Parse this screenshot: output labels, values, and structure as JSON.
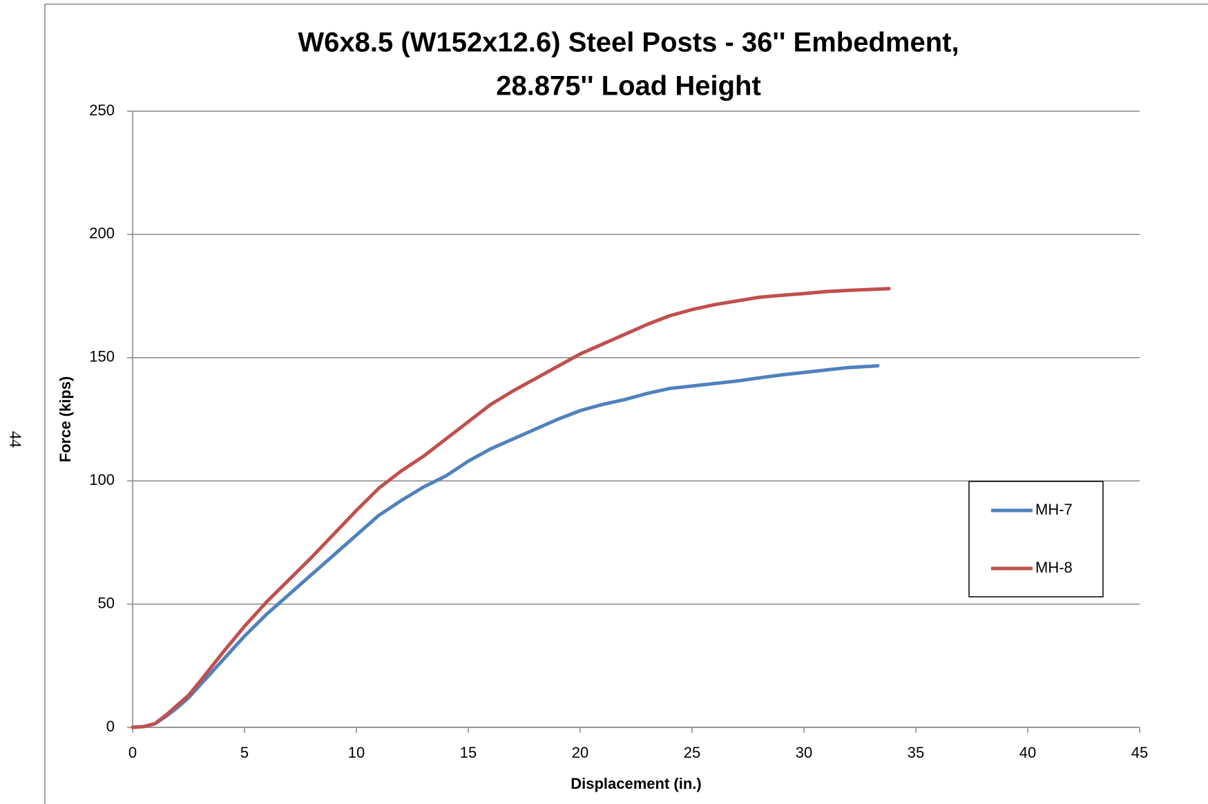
{
  "page_number": "44",
  "chart_data": {
    "type": "line",
    "title": [
      "W6x8.5 (W152x12.6) Steel Posts - 36'' Embedment,",
      "28.875'' Load Height"
    ],
    "x_label": "Displacement (in.)",
    "y_label": "Force (kips)",
    "xlim": [
      0,
      45
    ],
    "xticks": [
      0,
      5,
      10,
      15,
      20,
      25,
      30,
      35,
      40,
      45
    ],
    "ylim": [
      0,
      250
    ],
    "yticks": [
      0,
      50,
      100,
      150,
      200,
      250
    ],
    "grid": true,
    "legend": "right",
    "series": [
      {
        "name": "MH-7",
        "color": "#4f81bd",
        "x": [
          0,
          0.5,
          1,
          1.5,
          2,
          2.5,
          3,
          4,
          5,
          6,
          7,
          8,
          9,
          10,
          11,
          12,
          13,
          14,
          15,
          16,
          17,
          18,
          19,
          20,
          21,
          22,
          23,
          24,
          25,
          26,
          27,
          28,
          29,
          30,
          31,
          32,
          33,
          33.3
        ],
        "values": [
          0,
          0.3,
          1.5,
          4.5,
          8,
          12,
          17,
          27,
          37,
          46,
          54,
          62,
          70,
          78,
          86,
          92,
          97.5,
          102,
          108,
          113,
          117,
          121,
          125,
          128.5,
          131,
          133,
          135.5,
          137.5,
          138.5,
          139.5,
          140.5,
          141.8,
          143,
          144,
          145,
          146,
          146.5,
          146.7
        ]
      },
      {
        "name": "MH-8",
        "color": "#c0504d",
        "x": [
          0,
          0.5,
          1,
          1.5,
          2,
          2.5,
          3,
          4,
          5,
          6,
          7,
          8,
          9,
          10,
          11,
          12,
          13,
          14,
          15,
          16,
          17,
          18,
          19,
          20,
          21,
          22,
          23,
          24,
          25,
          26,
          27,
          28,
          29,
          30,
          31,
          32,
          33,
          33.8
        ],
        "values": [
          0,
          0.3,
          1.5,
          5,
          9,
          13,
          18.5,
          30,
          41,
          51,
          60,
          69,
          78.5,
          88,
          97,
          104,
          110,
          117,
          124,
          131,
          136.5,
          141.5,
          146.5,
          151.5,
          155.5,
          159.5,
          163.5,
          167,
          169.5,
          171.5,
          173,
          174.5,
          175.3,
          176,
          176.8,
          177.3,
          177.7,
          178
        ]
      }
    ]
  }
}
